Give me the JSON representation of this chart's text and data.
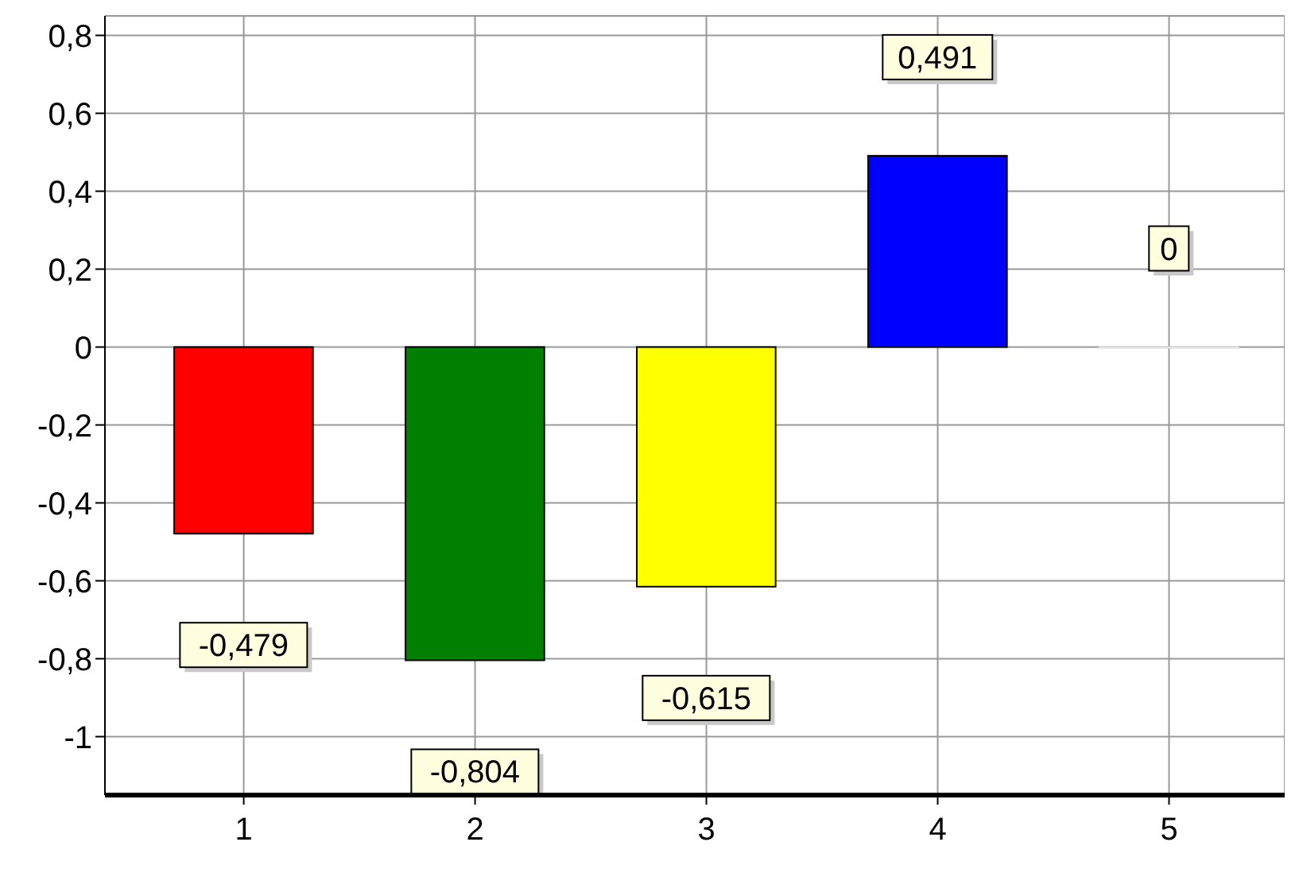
{
  "chart_data": {
    "type": "bar",
    "x": [
      1,
      2,
      3,
      4,
      5
    ],
    "values": [
      -0.479,
      -0.804,
      -0.615,
      0.491,
      0
    ],
    "value_labels": [
      "-0,479",
      "-0,804",
      "-0,615",
      "0,491",
      "0"
    ],
    "colors": [
      "#ff0000",
      "#008000",
      "#ffff00",
      "#0000ff",
      "#ffffff"
    ],
    "xlim": [
      0.4,
      5.5
    ],
    "xticks": [
      1,
      2,
      3,
      4,
      5
    ],
    "ylim": [
      -1.15,
      0.85
    ],
    "yticks": [
      -1,
      {
        "value": -0.8,
        "label": "-0,8"
      },
      {
        "value": -0.6,
        "label": "-0,6"
      },
      {
        "value": -0.4,
        "label": "-0,4"
      },
      {
        "value": -0.2,
        "label": "-0,2"
      },
      0,
      {
        "value": 0.2,
        "label": "0,2"
      },
      {
        "value": 0.4,
        "label": "0,4"
      },
      {
        "value": 0.6,
        "label": "0,6"
      },
      {
        "value": 0.8,
        "label": "0,8"
      }
    ],
    "grid": true
  }
}
